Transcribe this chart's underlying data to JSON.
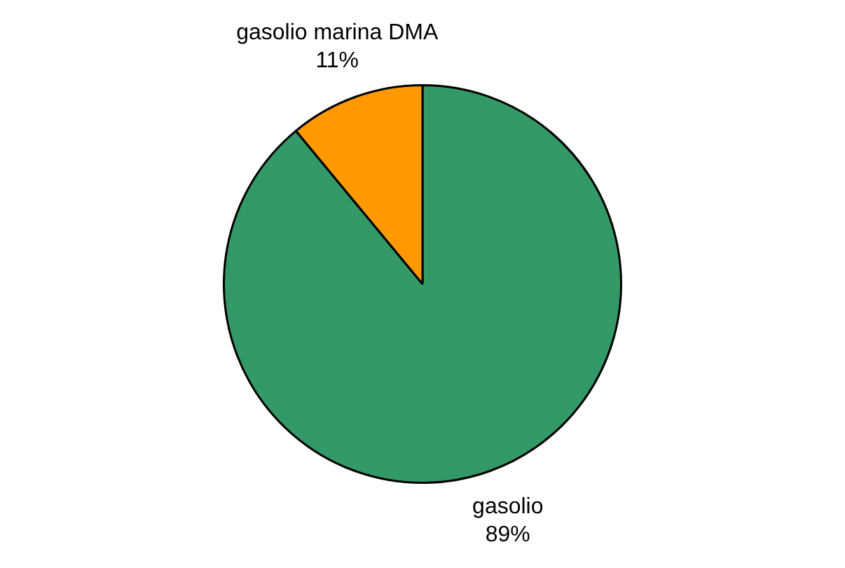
{
  "chart_data": {
    "type": "pie",
    "categories": [
      "gasolio",
      "gasolio marina DMA"
    ],
    "values": [
      89,
      11
    ],
    "colors": [
      "#339966",
      "#ff9900"
    ],
    "value_labels": [
      "89%",
      "11%"
    ],
    "legend": false
  }
}
